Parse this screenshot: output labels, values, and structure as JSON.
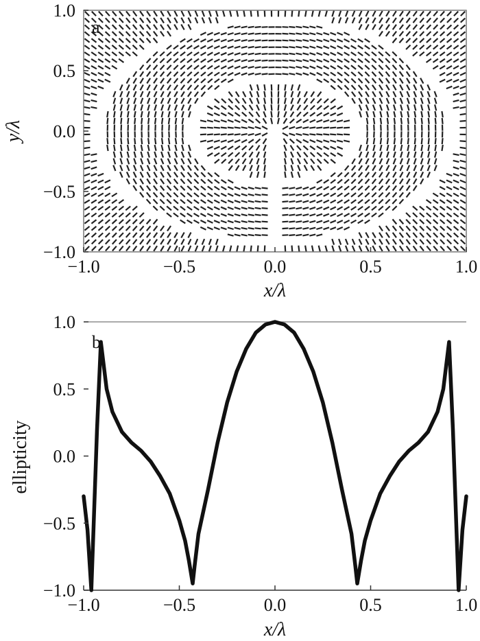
{
  "chart_data": [
    {
      "panel": "a",
      "type": "scatter",
      "marks": "polarization dash field",
      "xlabel": "x/λ",
      "ylabel": "y/λ",
      "xlim": [
        -1.0,
        1.0
      ],
      "ylim": [
        -1.0,
        1.0
      ],
      "xticks": [
        "−1.0",
        "−0.5",
        "0.0",
        "0.5",
        "1.0"
      ],
      "yticks": [
        "−1.0",
        "−0.5",
        "0.0",
        "0.5",
        "1.0"
      ],
      "grid": false,
      "zero_rings_radius": [
        0.43,
        0.93
      ]
    },
    {
      "panel": "b",
      "type": "line",
      "xlabel": "x/λ",
      "ylabel": "ellipticity",
      "xlim": [
        -1.0,
        1.0
      ],
      "ylim": [
        -1.0,
        1.0
      ],
      "xticks": [
        "−1.0",
        "−0.5",
        "0.0",
        "0.5",
        "1.0"
      ],
      "yticks": [
        "−1.0",
        "−0.5",
        "0.0",
        "0.5",
        "1.0"
      ],
      "grid": false,
      "series": [
        {
          "x": [
            -1.0,
            -0.98,
            -0.96,
            -0.93,
            -0.91,
            -0.88,
            -0.85,
            -0.8,
            -0.75,
            -0.7,
            -0.65,
            -0.6,
            -0.55,
            -0.5,
            -0.47,
            -0.45,
            -0.43,
            -0.42,
            -0.4,
            -0.35,
            -0.3,
            -0.25,
            -0.2,
            -0.15,
            -0.1,
            -0.05,
            0.0,
            0.05,
            0.1,
            0.15,
            0.2,
            0.25,
            0.3,
            0.35,
            0.4,
            0.42,
            0.43,
            0.45,
            0.47,
            0.5,
            0.55,
            0.6,
            0.65,
            0.7,
            0.75,
            0.8,
            0.85,
            0.88,
            0.91,
            0.93,
            0.96,
            0.98,
            1.0
          ],
          "values": [
            -0.3,
            -0.55,
            -1.0,
            0.2,
            0.85,
            0.5,
            0.33,
            0.18,
            0.1,
            0.04,
            -0.04,
            -0.15,
            -0.28,
            -0.48,
            -0.63,
            -0.78,
            -0.95,
            -0.82,
            -0.58,
            -0.25,
            0.1,
            0.4,
            0.63,
            0.8,
            0.92,
            0.98,
            1.0,
            0.98,
            0.92,
            0.8,
            0.63,
            0.4,
            0.1,
            -0.25,
            -0.58,
            -0.82,
            -0.95,
            -0.78,
            -0.63,
            -0.48,
            -0.28,
            -0.15,
            -0.04,
            0.04,
            0.1,
            0.18,
            0.33,
            0.5,
            0.85,
            0.2,
            -1.0,
            -0.55,
            -0.3
          ]
        }
      ]
    }
  ]
}
